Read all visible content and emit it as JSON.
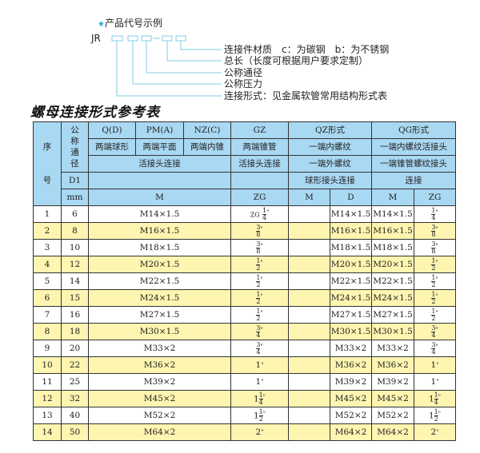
{
  "code_example": {
    "title": "产品代号示例",
    "prefix": "JR",
    "labels": [
      "连接件材质　c：为碳钢　b：为不锈钢",
      "总长（长度可根据用户要求定制）",
      "公称通径",
      "公称压力",
      "连接形式：见金属软管常用结构形式表"
    ]
  },
  "table_title": "螺母连接形式参考表",
  "header": {
    "seq": [
      "序",
      "号"
    ],
    "dn": "公称通径",
    "r1": [
      "Q(D)",
      "PM(A)",
      "NZ(C)",
      "GZ",
      "QZ形式",
      "QG形式"
    ],
    "r2": [
      "两端球形",
      "两端平面",
      "两端内锥",
      "两端锥管",
      "一端内螺纹",
      "一端内螺纹活接头"
    ],
    "r3": [
      "活接头连接",
      "活接头连接",
      "一端外螺纹",
      "一端锥管螺纹接头"
    ],
    "r4": [
      "D1",
      "球形接头连接",
      "连接"
    ],
    "r5": [
      "mm",
      "M",
      "ZG",
      "M",
      "D",
      "M",
      "ZG"
    ]
  },
  "rows": [
    {
      "seq": "1",
      "dn": "6",
      "m": "M14×1.5",
      "gz": {
        "prefix": "ZG",
        "whole": "",
        "num": "1",
        "den": "4"
      },
      "qz_m": "",
      "qz_d": "M14×1.5",
      "qg_m": "M14×1.5",
      "qg_zg": {
        "whole": "",
        "num": "1",
        "den": "4"
      }
    },
    {
      "seq": "2",
      "dn": "8",
      "m": "M16×1.5",
      "gz": {
        "whole": "",
        "num": "3",
        "den": "8"
      },
      "qz_m": "",
      "qz_d": "M16×1.5",
      "qg_m": "M16×1.5",
      "qg_zg": {
        "whole": "",
        "num": "3",
        "den": "8"
      }
    },
    {
      "seq": "3",
      "dn": "10",
      "m": "M18×1.5",
      "gz": {
        "whole": "",
        "num": "3",
        "den": "8"
      },
      "qz_m": "",
      "qz_d": "M18×1.5",
      "qg_m": "M18×1.5",
      "qg_zg": {
        "whole": "",
        "num": "3",
        "den": "8"
      }
    },
    {
      "seq": "4",
      "dn": "12",
      "m": "M20×1.5",
      "gz": {
        "whole": "",
        "num": "1",
        "den": "2"
      },
      "qz_m": "",
      "qz_d": "M20×1.5",
      "qg_m": "M20×1.5",
      "qg_zg": {
        "whole": "",
        "num": "1",
        "den": "2"
      }
    },
    {
      "seq": "5",
      "dn": "14",
      "m": "M22×1.5",
      "gz": {
        "whole": "",
        "num": "1",
        "den": "2"
      },
      "qz_m": "",
      "qz_d": "M22×1.5",
      "qg_m": "M22×1.5",
      "qg_zg": {
        "whole": "",
        "num": "1",
        "den": "2"
      }
    },
    {
      "seq": "6",
      "dn": "15",
      "m": "M24×1.5",
      "gz": {
        "whole": "",
        "num": "1",
        "den": "2"
      },
      "qz_m": "",
      "qz_d": "M24×1.5",
      "qg_m": "M24×1.5",
      "qg_zg": {
        "whole": "",
        "num": "1",
        "den": "2"
      }
    },
    {
      "seq": "7",
      "dn": "16",
      "m": "M27×1.5",
      "gz": {
        "whole": "",
        "num": "1",
        "den": "2"
      },
      "qz_m": "",
      "qz_d": "M27×1.5",
      "qg_m": "M27×1.5",
      "qg_zg": {
        "whole": "",
        "num": "1",
        "den": "2"
      }
    },
    {
      "seq": "8",
      "dn": "18",
      "m": "M30×1.5",
      "gz": {
        "whole": "",
        "num": "3",
        "den": "4"
      },
      "qz_m": "",
      "qz_d": "M30×1.5",
      "qg_m": "M30×1.5",
      "qg_zg": {
        "whole": "",
        "num": "3",
        "den": "4"
      }
    },
    {
      "seq": "9",
      "dn": "20",
      "m": "M33×2",
      "gz": {
        "whole": "",
        "num": "3",
        "den": "4"
      },
      "qz_m": "",
      "qz_d": "M33×2",
      "qg_m": "M33×2",
      "qg_zg": {
        "whole": "",
        "num": "3",
        "den": "4"
      }
    },
    {
      "seq": "10",
      "dn": "22",
      "m": "M36×2",
      "gz": {
        "whole": "1"
      },
      "qz_m": "",
      "qz_d": "M36×2",
      "qg_m": "M36×2",
      "qg_zg": {
        "whole": "1"
      }
    },
    {
      "seq": "11",
      "dn": "25",
      "m": "M39×2",
      "gz": {
        "whole": "1"
      },
      "qz_m": "",
      "qz_d": "M39×2",
      "qg_m": "M39×2",
      "qg_zg": {
        "whole": "1"
      }
    },
    {
      "seq": "12",
      "dn": "32",
      "m": "M45×2",
      "gz": {
        "whole": "1",
        "num": "1",
        "den": "4"
      },
      "qz_m": "",
      "qz_d": "M45×2",
      "qg_m": "M45×2",
      "qg_zg": {
        "whole": "1",
        "num": "1",
        "den": "4"
      }
    },
    {
      "seq": "13",
      "dn": "40",
      "m": "M52×2",
      "gz": {
        "whole": "1",
        "num": "1",
        "den": "2"
      },
      "qz_m": "",
      "qz_d": "M52×2",
      "qg_m": "M52×2",
      "qg_zg": {
        "whole": "1",
        "num": "1",
        "den": "2"
      }
    },
    {
      "seq": "14",
      "dn": "50",
      "m": "M64×2",
      "gz": {
        "whole": "2"
      },
      "qz_m": "",
      "qz_d": "M64×2",
      "qg_m": "M64×2",
      "qg_zg": {
        "whole": "2"
      }
    }
  ],
  "colors": {
    "header_bg": "#a9d8f2",
    "alt_row_bg": "#fdf5b0",
    "diagram_line": "#7fcbe6",
    "star": "#2aa6d8"
  }
}
